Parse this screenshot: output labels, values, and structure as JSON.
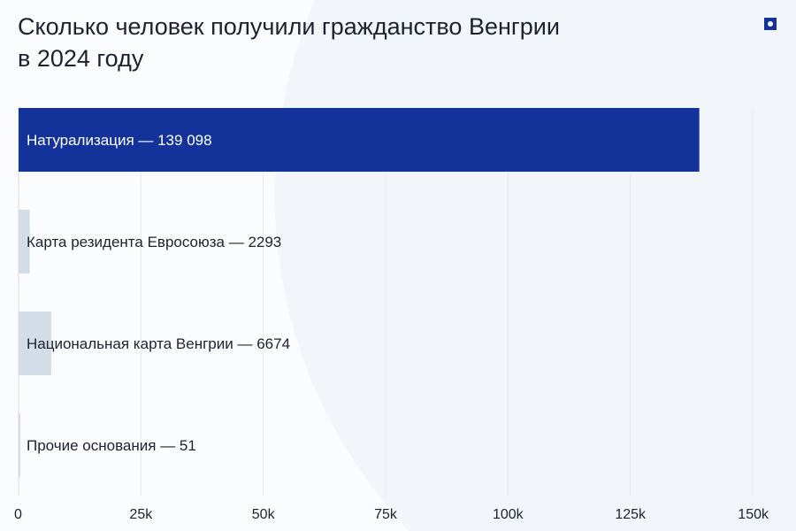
{
  "title": "Сколько человек получили гражданство Венгрии в 2024 году",
  "colors": {
    "highlight": "#14339a",
    "muted": "#d3dde8",
    "grid": "#e6e9ee"
  },
  "chart_data": {
    "type": "bar",
    "orientation": "horizontal",
    "title": "Сколько человек получили гражданство Венгрии в 2024 году",
    "categories": [
      "Натурализация",
      "Карта резидента Евросоюза",
      "Национальная карта Венгрии",
      "Прочие основания"
    ],
    "values": [
      139098,
      2293,
      6674,
      51
    ],
    "value_labels": [
      "139 098",
      "2293",
      "6674",
      "51"
    ],
    "xlim": [
      0,
      150000
    ],
    "xticks": [
      0,
      25000,
      50000,
      75000,
      100000,
      125000,
      150000
    ],
    "xtick_labels": [
      "0",
      "25k",
      "50k",
      "75k",
      "100k",
      "125k",
      "150k"
    ],
    "grid": true,
    "xlabel": "",
    "ylabel": ""
  }
}
